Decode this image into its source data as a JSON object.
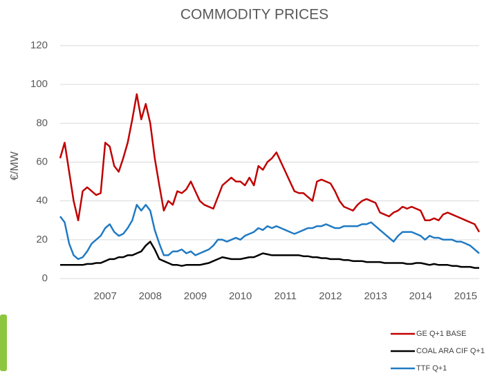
{
  "chart_data": {
    "type": "line",
    "title": "COMMODITY PRICES",
    "y_label": "€/MW",
    "x": [
      2006,
      2006.1,
      2006.2,
      2006.3,
      2006.4,
      2006.5,
      2006.6,
      2006.7,
      2006.8,
      2006.9,
      2007,
      2007.1,
      2007.2,
      2007.3,
      2007.4,
      2007.5,
      2007.6,
      2007.7,
      2007.8,
      2007.9,
      2008,
      2008.1,
      2008.2,
      2008.3,
      2008.4,
      2008.5,
      2008.6,
      2008.7,
      2008.8,
      2008.9,
      2009,
      2009.1,
      2009.2,
      2009.3,
      2009.4,
      2009.5,
      2009.6,
      2009.7,
      2009.8,
      2009.9,
      2010,
      2010.1,
      2010.2,
      2010.3,
      2010.4,
      2010.5,
      2010.6,
      2010.7,
      2010.8,
      2010.9,
      2011,
      2011.1,
      2011.2,
      2011.3,
      2011.4,
      2011.5,
      2011.6,
      2011.7,
      2011.8,
      2011.9,
      2012,
      2012.1,
      2012.2,
      2012.3,
      2012.4,
      2012.5,
      2012.6,
      2012.7,
      2012.8,
      2012.9,
      2013,
      2013.1,
      2013.2,
      2013.3,
      2013.4,
      2013.5,
      2013.6,
      2013.7,
      2013.8,
      2013.9,
      2014,
      2014.1,
      2014.2,
      2014.3,
      2014.4,
      2014.5,
      2014.6,
      2014.7,
      2014.8,
      2014.9,
      2015,
      2015.1,
      2015.2,
      2015.3
    ],
    "series": [
      {
        "name": "GE Q+1 BASE",
        "color": "#c00000",
        "values": [
          62,
          70,
          55,
          40,
          30,
          45,
          47,
          45,
          43,
          44,
          70,
          68,
          58,
          55,
          62,
          70,
          82,
          95,
          82,
          90,
          80,
          62,
          48,
          35,
          40,
          38,
          45,
          44,
          46,
          50,
          45,
          40,
          38,
          37,
          36,
          42,
          48,
          50,
          52,
          50,
          50,
          48,
          52,
          48,
          58,
          56,
          60,
          62,
          65,
          60,
          55,
          50,
          45,
          44,
          44,
          42,
          40,
          50,
          51,
          50,
          49,
          45,
          40,
          37,
          36,
          35,
          38,
          40,
          41,
          40,
          39,
          34,
          33,
          32,
          34,
          35,
          37,
          36,
          37,
          36,
          35,
          30,
          30,
          31,
          30,
          33,
          34,
          33,
          32,
          31,
          30,
          29,
          28,
          24
        ]
      },
      {
        "name": "COAL ARA CIF Q+1",
        "color": "#000000",
        "values": [
          7,
          7,
          7,
          7,
          7,
          7,
          7.5,
          7.5,
          8,
          8,
          9,
          10,
          10,
          11,
          11,
          12,
          12,
          13,
          14,
          17,
          19,
          15,
          10,
          9,
          8,
          7,
          7,
          6.5,
          7,
          7,
          7,
          7,
          7.5,
          8,
          9,
          10,
          11,
          10.5,
          10,
          10,
          10,
          10.5,
          11,
          11,
          12,
          13,
          12.5,
          12,
          12,
          12,
          12,
          12,
          12,
          12,
          11.5,
          11.5,
          11,
          11,
          10.5,
          10.5,
          10,
          10,
          10,
          9.5,
          9.5,
          9,
          9,
          9,
          8.5,
          8.5,
          8.5,
          8.5,
          8,
          8,
          8,
          8,
          8,
          7.5,
          7.5,
          8,
          8,
          7.5,
          7,
          7.5,
          7,
          7,
          7,
          6.5,
          6.5,
          6,
          6,
          6,
          5.5,
          5.5
        ]
      },
      {
        "name": "TTF Q+1",
        "color": "#1f7ac4",
        "values": [
          32,
          29,
          18,
          12,
          10,
          11,
          14,
          18,
          20,
          22,
          26,
          28,
          24,
          22,
          23,
          26,
          30,
          38,
          35,
          38,
          35,
          25,
          18,
          12,
          12,
          14,
          14,
          15,
          13,
          14,
          12,
          13,
          14,
          15,
          17,
          20,
          20,
          19,
          20,
          21,
          20,
          22,
          23,
          24,
          26,
          25,
          27,
          26,
          27,
          26,
          25,
          24,
          23,
          24,
          25,
          26,
          26,
          27,
          27,
          28,
          27,
          26,
          26,
          27,
          27,
          27,
          27,
          28,
          28,
          29,
          27,
          25,
          23,
          21,
          19,
          22,
          24,
          24,
          24,
          23,
          22,
          20,
          22,
          21,
          21,
          20,
          20,
          20,
          19,
          19,
          18,
          17,
          15,
          13
        ]
      }
    ],
    "xlim": [
      2006,
      2015.3
    ],
    "xticks": [
      2007,
      2008,
      2009,
      2010,
      2011,
      2012,
      2013,
      2014,
      2015
    ],
    "ylim": [
      0,
      120
    ],
    "yticks": [
      0,
      20,
      40,
      60,
      80,
      100,
      120
    ],
    "grid": true
  }
}
